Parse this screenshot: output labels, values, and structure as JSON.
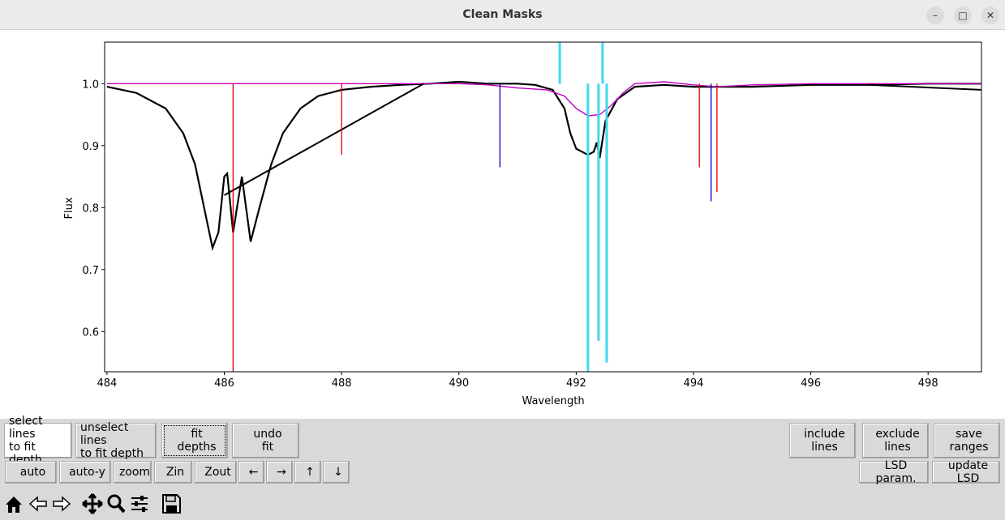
{
  "window": {
    "title": "Clean Masks"
  },
  "chart_data": {
    "type": "line",
    "xlabel": "Wavelength",
    "ylabel": "Flux",
    "xlim": [
      483.96,
      498.91
    ],
    "ylim": [
      0.535,
      1.067
    ],
    "xticks": [
      484,
      486,
      488,
      490,
      492,
      494,
      496,
      498
    ],
    "yticks": [
      0.6,
      0.7,
      0.8,
      0.9,
      {
        "value": 1,
        "label": "1.0"
      }
    ],
    "series": [
      {
        "color": "#000000",
        "width": 2.2,
        "x": [
          484,
          484.5,
          485,
          485.3,
          485.5,
          485.7,
          485.8,
          485.9,
          486.0,
          486.05,
          486.15,
          486.25,
          486.3,
          486.45,
          486.6,
          486.8,
          487.0,
          487.3,
          487.6,
          488,
          488.5,
          489,
          489.5,
          490,
          490.5,
          491,
          491.3,
          491.6,
          491.8,
          491.9,
          492.0,
          492.2,
          492.3,
          492.35,
          492.4,
          492.5,
          492.7,
          493,
          493.5,
          494,
          495,
          496,
          497,
          498,
          498.9
        ],
        "values": [
          0.995,
          0.985,
          0.96,
          0.92,
          0.87,
          0.78,
          0.735,
          0.76,
          0.85,
          0.855,
          0.76,
          0.82,
          0.85,
          0.745,
          0.8,
          0.87,
          0.92,
          0.96,
          0.98,
          0.99,
          0.995,
          0.998,
          1.0,
          1.003,
          1.0,
          1.0,
          0.998,
          0.99,
          0.96,
          0.92,
          0.895,
          0.885,
          0.89,
          0.905,
          0.88,
          0.94,
          0.975,
          0.995,
          0.998,
          0.995,
          0.995,
          0.998,
          0.998,
          1.0,
          1.0
        ]
      },
      {
        "color": "#c000c0",
        "width": 1.4,
        "x": [
          484,
          489,
          490,
          490.5,
          491,
          491.5,
          491.8,
          492.0,
          492.2,
          492.4,
          492.6,
          492.8,
          493,
          493.5,
          494,
          494.4,
          495,
          496,
          498.9
        ],
        "values": [
          1.0,
          1.0,
          1.0,
          0.998,
          0.993,
          0.99,
          0.98,
          0.96,
          0.948,
          0.95,
          0.965,
          0.985,
          1.0,
          1.003,
          0.998,
          0.995,
          0.998,
          1.0,
          1.0
        ]
      },
      {
        "color": "#000000",
        "width": 2,
        "x": [
          486.0,
          489.4
        ],
        "values": [
          0.82,
          1.0
        ]
      },
      {
        "color": "#000000",
        "width": 2,
        "x": [
          497,
          498.9
        ],
        "values": [
          0.998,
          0.99
        ]
      }
    ],
    "lines": [
      {
        "color": "#dd0000",
        "width": 1.3,
        "x": 486.15,
        "low": 0.535,
        "high": 1.0
      },
      {
        "color": "#dd0000",
        "width": 1.3,
        "x": 488.0,
        "low": 0.885,
        "high": 1.0
      },
      {
        "color": "#dd0000",
        "width": 1.3,
        "x": 494.1,
        "low": 0.865,
        "high": 1.0
      },
      {
        "color": "#dd0000",
        "width": 1.3,
        "x": 494.4,
        "low": 0.825,
        "high": 1.0
      },
      {
        "color": "#0000cc",
        "width": 1.3,
        "x": 490.7,
        "low": 0.865,
        "high": 1.0
      },
      {
        "color": "#0000cc",
        "width": 1.3,
        "x": 494.3,
        "low": 0.81,
        "high": 1.0
      },
      {
        "color": "#40d8f0",
        "width": 3,
        "x": 491.72,
        "low": 1.0,
        "high": 1.067
      },
      {
        "color": "#40d8f0",
        "width": 3,
        "x": 492.45,
        "low": 1.0,
        "high": 1.067
      },
      {
        "color": "#40d8f0",
        "width": 3,
        "x": 492.2,
        "low": 0.535,
        "high": 1.0
      },
      {
        "color": "#40d8f0",
        "width": 3,
        "x": 492.38,
        "low": 0.585,
        "high": 1.0
      },
      {
        "color": "#40d8f0",
        "width": 3,
        "x": 492.52,
        "low": 0.55,
        "high": 1.0
      }
    ]
  },
  "buttons": [
    "select lines\nto fit depth",
    "unselect lines\nto fit depth",
    "fit\ndepths",
    "undo\nfit",
    "include\nlines",
    "exclude\nlines",
    "save\nranges",
    "auto",
    "auto-y",
    "zoom",
    "Zin",
    "Zout",
    "←",
    "→",
    "↑",
    "↓",
    "LSD param.",
    "update LSD"
  ]
}
